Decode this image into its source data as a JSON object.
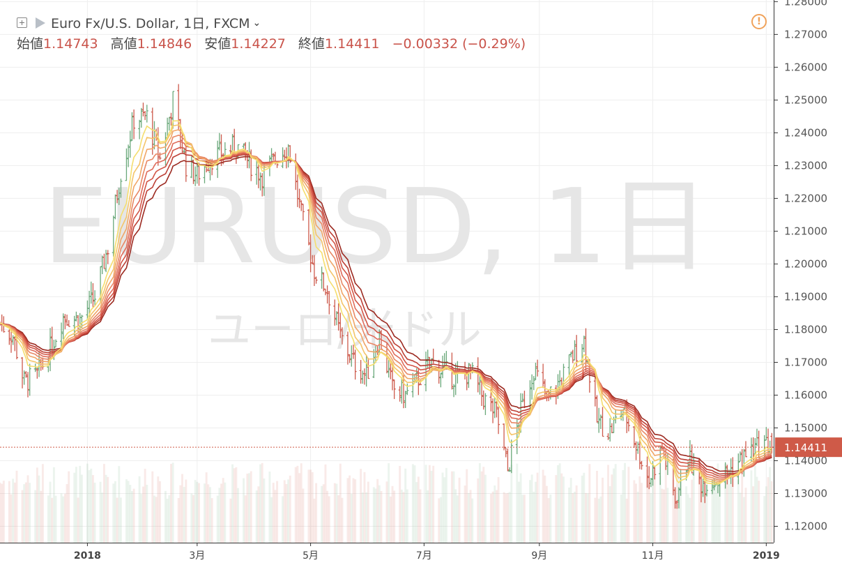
{
  "header": {
    "symbol": "Euro Fx/U.S. Dollar, 1日, FXCM",
    "open_label": "始値",
    "open": "1.14743",
    "high_label": "高値",
    "high": "1.14846",
    "low_label": "安値",
    "low": "1.14227",
    "close_label": "終値",
    "close": "1.14411",
    "change": "−0.00332 (−0.29%)"
  },
  "watermark": {
    "main": "EURUSD, 1日",
    "sub": "ユーロ/米ドル"
  },
  "price_tag": "1.14411",
  "colors": {
    "up": "#6aa87a",
    "down": "#cd5a4c",
    "price_tag": "#cf5a48",
    "ribbon": [
      "#f5de6e",
      "#f4c46a",
      "#f0a567",
      "#e88764",
      "#df6b5a",
      "#d25546",
      "#bd3f35",
      "#9c2a21"
    ]
  },
  "chart_data": {
    "type": "candlestick",
    "title": "Euro Fx/U.S. Dollar, 1日, FXCM",
    "ylim": [
      1.115,
      1.2805
    ],
    "y_ticks": [
      "1.28000",
      "1.27000",
      "1.26000",
      "1.25000",
      "1.24000",
      "1.23000",
      "1.22000",
      "1.21000",
      "1.20000",
      "1.19000",
      "1.18000",
      "1.17000",
      "1.16000",
      "1.15000",
      "1.14000",
      "1.13000",
      "1.12000"
    ],
    "x_ticks": [
      "2018",
      "3月",
      "5月",
      "7月",
      "9月",
      "11月",
      "2019"
    ],
    "x_start": "2017-11-15",
    "x_end": "2019-01-05",
    "anchors": [
      [
        "2017-11-15",
        1.182
      ],
      [
        "2017-11-22",
        1.178
      ],
      [
        "2017-11-28",
        1.164
      ],
      [
        "2017-12-05",
        1.166
      ],
      [
        "2017-12-12",
        1.174
      ],
      [
        "2017-12-19",
        1.184
      ],
      [
        "2017-12-28",
        1.183
      ],
      [
        "2018-01-05",
        1.19
      ],
      [
        "2018-01-12",
        1.205
      ],
      [
        "2018-01-19",
        1.228
      ],
      [
        "2018-01-26",
        1.244
      ],
      [
        "2018-02-02",
        1.245
      ],
      [
        "2018-02-09",
        1.232
      ],
      [
        "2018-02-16",
        1.25
      ],
      [
        "2018-02-23",
        1.23
      ],
      [
        "2018-03-01",
        1.227
      ],
      [
        "2018-03-08",
        1.232
      ],
      [
        "2018-03-15",
        1.234
      ],
      [
        "2018-03-22",
        1.236
      ],
      [
        "2018-03-29",
        1.231
      ],
      [
        "2018-04-05",
        1.227
      ],
      [
        "2018-04-12",
        1.232
      ],
      [
        "2018-04-19",
        1.236
      ],
      [
        "2018-04-26",
        1.215
      ],
      [
        "2018-05-03",
        1.198
      ],
      [
        "2018-05-10",
        1.192
      ],
      [
        "2018-05-17",
        1.178
      ],
      [
        "2018-05-24",
        1.17
      ],
      [
        "2018-05-31",
        1.166
      ],
      [
        "2018-06-07",
        1.178
      ],
      [
        "2018-06-14",
        1.162
      ],
      [
        "2018-06-21",
        1.16
      ],
      [
        "2018-06-28",
        1.165
      ],
      [
        "2018-07-05",
        1.17
      ],
      [
        "2018-07-12",
        1.167
      ],
      [
        "2018-07-19",
        1.165
      ],
      [
        "2018-07-26",
        1.167
      ],
      [
        "2018-08-02",
        1.159
      ],
      [
        "2018-08-09",
        1.154
      ],
      [
        "2018-08-15",
        1.137
      ],
      [
        "2018-08-22",
        1.155
      ],
      [
        "2018-08-29",
        1.168
      ],
      [
        "2018-09-05",
        1.159
      ],
      [
        "2018-09-12",
        1.164
      ],
      [
        "2018-09-19",
        1.172
      ],
      [
        "2018-09-25",
        1.177
      ],
      [
        "2018-10-02",
        1.152
      ],
      [
        "2018-10-09",
        1.149
      ],
      [
        "2018-10-16",
        1.156
      ],
      [
        "2018-10-23",
        1.145
      ],
      [
        "2018-10-30",
        1.134
      ],
      [
        "2018-11-06",
        1.144
      ],
      [
        "2018-11-13",
        1.128
      ],
      [
        "2018-11-20",
        1.141
      ],
      [
        "2018-11-27",
        1.133
      ],
      [
        "2018-12-04",
        1.134
      ],
      [
        "2018-12-11",
        1.136
      ],
      [
        "2018-12-18",
        1.14
      ],
      [
        "2018-12-24",
        1.143
      ],
      [
        "2018-12-31",
        1.145
      ],
      [
        "2019-01-04",
        1.14411
      ]
    ],
    "last": {
      "open": 1.14743,
      "high": 1.14846,
      "low": 1.14227,
      "close": 1.14411
    },
    "ema_periods": [
      8,
      11,
      14,
      17,
      20,
      23,
      26,
      30
    ],
    "volume": "shown as translucent bars along the bottom of the plot"
  }
}
